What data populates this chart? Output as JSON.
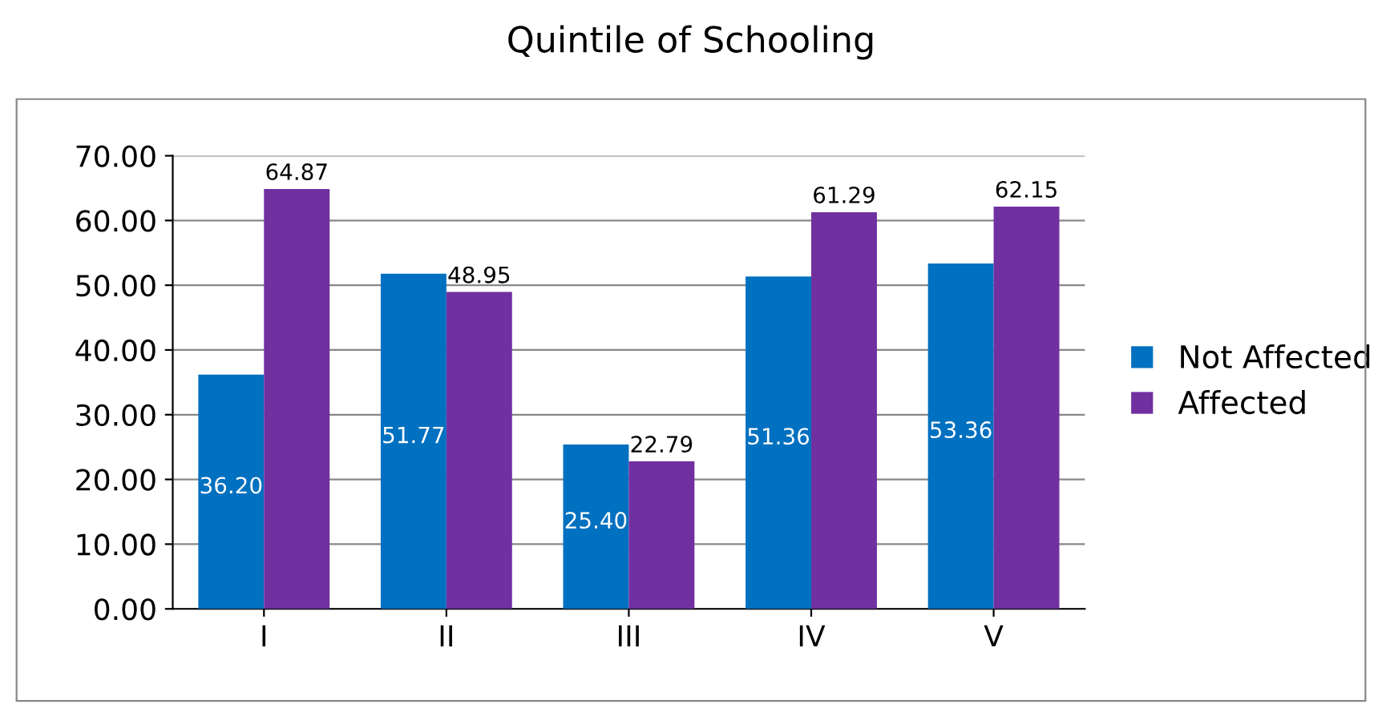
{
  "chart_data": {
    "type": "bar",
    "title": "Quintile of Schooling",
    "categories": [
      "I",
      "II",
      "III",
      "IV",
      "V"
    ],
    "series": [
      {
        "name": "Not Affected",
        "color": "#0070c0",
        "values": [
          36.2,
          51.77,
          25.4,
          51.36,
          53.36
        ],
        "value_labels": [
          "36.20",
          "51.77",
          "25.40",
          "51.36",
          "53.36"
        ]
      },
      {
        "name": "Affected",
        "color": "#7030a0",
        "values": [
          64.87,
          48.95,
          22.79,
          61.29,
          62.15
        ],
        "value_labels": [
          "64.87",
          "48.95",
          "22.79",
          "61.29",
          "62.15"
        ]
      }
    ],
    "ylim": [
      0,
      70
    ],
    "yticks": [
      {
        "value": 0,
        "label": "0.00"
      },
      {
        "value": 10,
        "label": "10.00"
      },
      {
        "value": 20,
        "label": "20.00"
      },
      {
        "value": 30,
        "label": "30.00"
      },
      {
        "value": 40,
        "label": "40.00"
      },
      {
        "value": 50,
        "label": "50.00"
      },
      {
        "value": 60,
        "label": "60.00"
      },
      {
        "value": 70,
        "label": "70.00"
      }
    ],
    "grid": "y",
    "legend": "right"
  }
}
